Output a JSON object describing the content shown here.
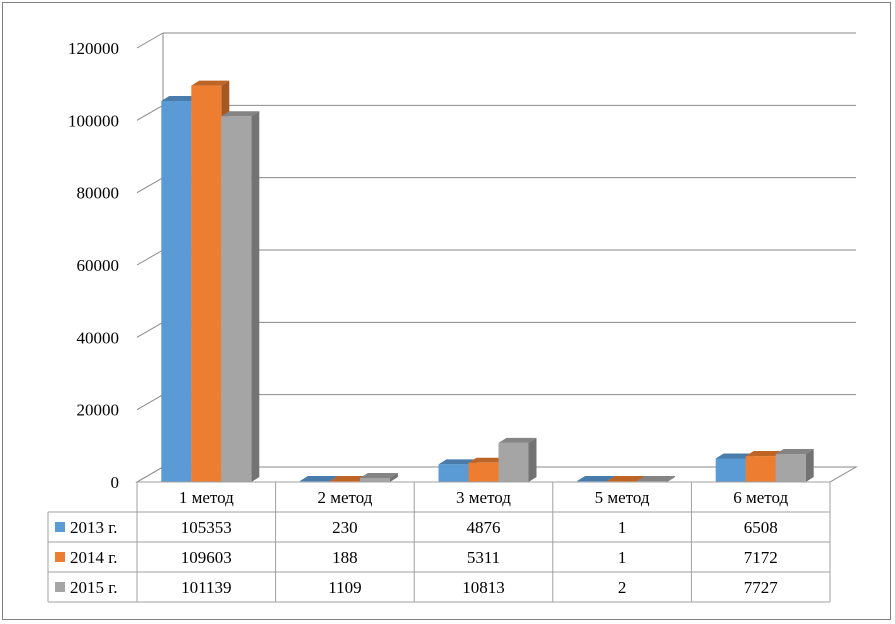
{
  "chart_data": {
    "type": "bar",
    "categories": [
      "1 метод",
      "2 метод",
      "3 метод",
      "5 метод",
      "6 метод"
    ],
    "series": [
      {
        "name": "2013 г.",
        "values": [
          105353,
          230,
          4876,
          1,
          6508
        ],
        "color": "#5b9bd5"
      },
      {
        "name": "2014 г.",
        "values": [
          109603,
          188,
          5311,
          1,
          7172
        ],
        "color": "#ed7d31"
      },
      {
        "name": "2015 г.",
        "values": [
          101139,
          1109,
          10813,
          2,
          7727
        ],
        "color": "#a5a5a5"
      }
    ],
    "ylim": [
      0,
      120000
    ],
    "yticks": [
      "0",
      "20000",
      "40000",
      "60000",
      "80000",
      "100000",
      "120000"
    ],
    "grid": true,
    "legend": "data-table",
    "data_table": [
      [
        "105353",
        "230",
        "4876",
        "1",
        "6508"
      ],
      [
        "109603",
        "188",
        "5311",
        "1",
        "7172"
      ],
      [
        "101139",
        "1109",
        "10813",
        "2",
        "7727"
      ]
    ]
  }
}
